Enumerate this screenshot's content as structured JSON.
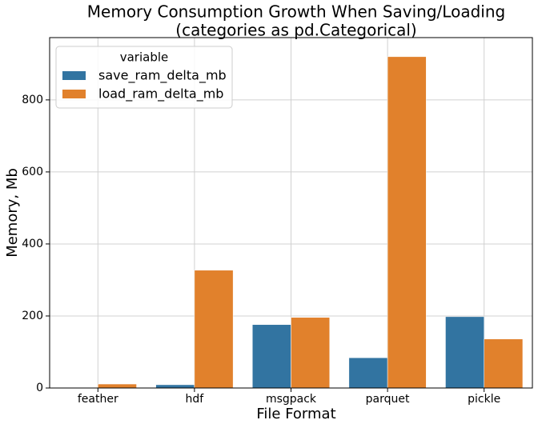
{
  "chart_data": {
    "type": "bar",
    "title": [
      "Memory Consumption Growth When Saving/Loading",
      "(categories as pd.Categorical)"
    ],
    "x_label": "File Format",
    "y_label": "Memory, Mb",
    "categories": [
      "feather",
      "hdf",
      "msgpack",
      "parquet",
      "pickle"
    ],
    "series": [
      {
        "name": "save_ram_delta_mb",
        "color": "#3274a1",
        "values": [
          0.5,
          9,
          176,
          84,
          198
        ]
      },
      {
        "name": "load_ram_delta_mb",
        "color": "#e1812c",
        "values": [
          11,
          327,
          196,
          920,
          136
        ]
      }
    ],
    "legend_title": "variable",
    "legend": "upper left",
    "ylim": [
      0,
      973
    ],
    "yticks": [
      0,
      200,
      400,
      600,
      800
    ],
    "grid": true
  }
}
